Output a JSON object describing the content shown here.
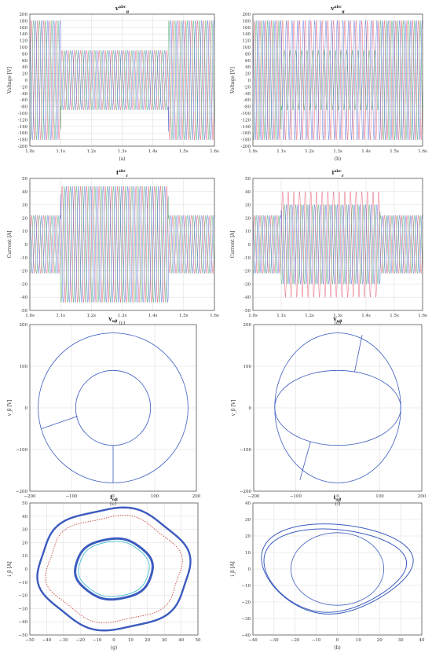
{
  "colors": {
    "grid": "#d9d9d9",
    "axis": "#444444",
    "phase_a": "#e0405a",
    "phase_b": "#2f9e5a",
    "phase_c": "#3b5bd9",
    "trace": "#3b5bbf",
    "trace_alt": "#2bb7c9",
    "trace_marker": "#c0392b"
  },
  "chart_data": [
    {
      "id": "a",
      "type": "line",
      "title": "v_g^abc",
      "title_main": "v",
      "title_sub": "g",
      "title_sup": "abc",
      "caption": "(a)",
      "xlabel": "",
      "ylabel": "Voltage [V]",
      "xlim": [
        1.0,
        1.6
      ],
      "ylim": [
        -200,
        200
      ],
      "xticks": [
        1.0,
        1.1,
        1.2,
        1.3,
        1.4,
        1.5,
        1.6
      ],
      "xtick_labels": [
        "1.0s",
        "1.1s",
        "1.2s",
        "1.3s",
        "1.4s",
        "1.5s",
        "1.6s"
      ],
      "yticks": [
        -200,
        -180,
        -160,
        -140,
        -120,
        -100,
        -80,
        -60,
        -40,
        -20,
        0,
        20,
        40,
        60,
        80,
        100,
        120,
        140,
        160,
        180,
        200
      ],
      "ytick_labels": [
        "-200",
        "-180",
        "-160",
        "-140",
        "-120",
        "-100",
        "-80",
        "-60",
        "-40",
        "-20",
        "0",
        "20",
        "40",
        "60",
        "80",
        "100",
        "120",
        "140",
        "160",
        "180",
        "200"
      ],
      "series": [
        {
          "phase": "a",
          "amplitude_segments": [
            {
              "t0": 1.0,
              "t1": 1.1,
              "amp": 180
            },
            {
              "t0": 1.1,
              "t1": 1.45,
              "amp": 90
            },
            {
              "t0": 1.45,
              "t1": 1.6,
              "amp": 180
            }
          ],
          "frequency": 50
        }
      ]
    },
    {
      "id": "b",
      "type": "line",
      "title": "v_g^abc",
      "title_main": "v",
      "title_sub": "g",
      "title_sup": "abc",
      "caption": "(b)",
      "xlabel": "",
      "ylabel": "Voltage [V]",
      "xlim": [
        1.0,
        1.6
      ],
      "ylim": [
        -200,
        200
      ],
      "xticks": [
        1.0,
        1.1,
        1.2,
        1.3,
        1.4,
        1.5,
        1.6
      ],
      "xtick_labels": [
        "1.0s",
        "1.1s",
        "1.2s",
        "1.3s",
        "1.4s",
        "1.5s",
        "1.6s"
      ],
      "yticks": [
        -200,
        -180,
        -160,
        -140,
        -120,
        -100,
        -80,
        -60,
        -40,
        -20,
        0,
        20,
        40,
        60,
        80,
        100,
        120,
        140,
        160,
        180,
        200
      ],
      "ytick_labels": [
        "-200",
        "-180",
        "-160",
        "-140",
        "-120",
        "-100",
        "-80",
        "-60",
        "-40",
        "-20",
        "0",
        "20",
        "40",
        "60",
        "80",
        "100",
        "120",
        "140",
        "160",
        "180",
        "200"
      ],
      "series": [
        {
          "phase": "unbalanced",
          "amplitude_segments": [
            {
              "t0": 1.0,
              "t1": 1.1,
              "amp": 180
            },
            {
              "t0": 1.1,
              "t1": 1.45,
              "amp": 180,
              "amp_b": 90
            },
            {
              "t0": 1.45,
              "t1": 1.6,
              "amp": 180
            }
          ],
          "frequency": 50
        }
      ]
    },
    {
      "id": "c",
      "type": "line",
      "title": "i_r^abc",
      "title_main": "i",
      "title_sub": "r",
      "title_sup": "abc",
      "caption": "(c)",
      "xlabel": "",
      "ylabel": "Current [A]",
      "xlim": [
        1.0,
        1.6
      ],
      "ylim": [
        -50,
        50
      ],
      "xticks": [
        1.0,
        1.1,
        1.2,
        1.3,
        1.4,
        1.5,
        1.6
      ],
      "xtick_labels": [
        "1.0s",
        "1.1s",
        "1.2s",
        "1.3s",
        "1.4s",
        "1.5s",
        "1.6s"
      ],
      "yticks": [
        -50,
        -40,
        -30,
        -20,
        -10,
        0,
        10,
        20,
        30,
        40,
        50
      ],
      "ytick_labels": [
        "-50",
        "-40",
        "-30",
        "-20",
        "-10",
        "0",
        "10",
        "20",
        "30",
        "40",
        "50"
      ],
      "series": [
        {
          "phase": "a",
          "amplitude_segments": [
            {
              "t0": 1.0,
              "t1": 1.1,
              "amp": 22
            },
            {
              "t0": 1.1,
              "t1": 1.45,
              "amp": 44
            },
            {
              "t0": 1.45,
              "t1": 1.6,
              "amp": 22
            }
          ],
          "frequency": 50
        }
      ]
    },
    {
      "id": "d",
      "type": "line",
      "title": "i_r^abc",
      "title_main": "i",
      "title_sub": "r",
      "title_sup": "abc",
      "caption": "(d)",
      "xlabel": "",
      "ylabel": "Current [A]",
      "xlim": [
        1.0,
        1.6
      ],
      "ylim": [
        -50,
        50
      ],
      "xticks": [
        1.0,
        1.1,
        1.2,
        1.3,
        1.4,
        1.5,
        1.6
      ],
      "xtick_labels": [
        "1.0s",
        "1.1s",
        "1.2s",
        "1.3s",
        "1.4s",
        "1.5s",
        "1.6s"
      ],
      "yticks": [
        -50,
        -40,
        -30,
        -20,
        -10,
        0,
        10,
        20,
        30,
        40,
        50
      ],
      "ytick_labels": [
        "-50",
        "-40",
        "-30",
        "-20",
        "-10",
        "0",
        "10",
        "20",
        "30",
        "40",
        "50"
      ],
      "series": [
        {
          "phase": "unbalanced",
          "amplitude_segments": [
            {
              "t0": 1.0,
              "t1": 1.1,
              "amp": 22
            },
            {
              "t0": 1.1,
              "t1": 1.45,
              "amp": 30,
              "amp_peak": 40
            },
            {
              "t0": 1.45,
              "t1": 1.6,
              "amp": 22
            }
          ],
          "frequency": 50
        }
      ]
    },
    {
      "id": "e",
      "type": "scatter",
      "title": "v_αβ",
      "title_main": "v",
      "title_sub": "αβ",
      "title_sup": "",
      "caption": "(e)",
      "xlabel": "",
      "ylabel": "v_β [V]",
      "xlim": [
        -200,
        200
      ],
      "ylim": [
        -200,
        200
      ],
      "xticks": [
        -200,
        -100,
        0,
        100,
        200
      ],
      "xtick_labels": [
        "−200",
        "−100",
        "0",
        "100",
        "200"
      ],
      "yticks": [
        -200,
        -100,
        0,
        100,
        200
      ],
      "ytick_labels": [
        "−200",
        "−100",
        "0",
        "100",
        "200"
      ],
      "curves": [
        {
          "kind": "ellipse",
          "cx": 0,
          "cy": 0,
          "rx": 180,
          "ry": 180
        },
        {
          "kind": "ellipse",
          "cx": 0,
          "cy": 0,
          "rx": 90,
          "ry": 90
        },
        {
          "kind": "segment",
          "x1": -85,
          "y1": -20,
          "x2": -172,
          "y2": -50
        },
        {
          "kind": "segment",
          "x1": 0,
          "y1": -90,
          "x2": 0,
          "y2": -180
        }
      ]
    },
    {
      "id": "f",
      "type": "scatter",
      "title": "v_αβ",
      "title_main": "v",
      "title_sub": "αβ",
      "title_sup": "",
      "caption": "(f)",
      "xlabel": "",
      "ylabel": "v_β [V]",
      "xlim": [
        -200,
        200
      ],
      "ylim": [
        -200,
        200
      ],
      "xticks": [
        -200,
        -100,
        0,
        100,
        200
      ],
      "xtick_labels": [
        "−200",
        "−100",
        "0",
        "100",
        "200"
      ],
      "yticks": [
        -200,
        -100,
        0,
        100,
        200
      ],
      "ytick_labels": [
        "−200",
        "−100",
        "0",
        "100",
        "200"
      ],
      "curves": [
        {
          "kind": "ellipse",
          "cx": 0,
          "cy": 0,
          "rx": 150,
          "ry": 180
        },
        {
          "kind": "ellipse",
          "cx": 0,
          "cy": 0,
          "rx": 150,
          "ry": 90
        },
        {
          "kind": "segment",
          "x1": -65,
          "y1": -82,
          "x2": -90,
          "y2": -173
        },
        {
          "kind": "segment",
          "x1": 40,
          "y1": 86,
          "x2": 58,
          "y2": 175
        }
      ]
    },
    {
      "id": "g",
      "type": "scatter",
      "title": "i_αβ",
      "title_main": "i",
      "title_sub": "αβ",
      "title_sup": "",
      "caption": "(g)",
      "xlabel": "",
      "ylabel": "i_β [A]",
      "xlim": [
        -50,
        50
      ],
      "ylim": [
        -50,
        50
      ],
      "xticks": [
        -50,
        -40,
        -30,
        -20,
        -10,
        0,
        10,
        20,
        30,
        40,
        50
      ],
      "xtick_labels": [
        "−50",
        "−40",
        "−30",
        "−20",
        "−10",
        "0",
        "10",
        "20",
        "30",
        "40",
        "50"
      ],
      "yticks": [
        -50,
        -40,
        -30,
        -20,
        -10,
        0,
        10,
        20,
        30,
        40,
        50
      ],
      "ytick_labels": [
        "−50",
        "−40",
        "−30",
        "−20",
        "−10",
        "0",
        "10",
        "20",
        "30",
        "40",
        "50"
      ],
      "curves": [
        {
          "kind": "loop",
          "cx": 0,
          "cy": 0,
          "rx": 45,
          "ry": 46,
          "wobble": 0.06,
          "width": 2.4
        },
        {
          "kind": "loop",
          "cx": 0,
          "cy": 0,
          "rx": 40,
          "ry": 40,
          "wobble": 0.08,
          "width": 0.8,
          "dashed": true
        },
        {
          "kind": "loop",
          "cx": 0,
          "cy": 0,
          "rx": 23,
          "ry": 23,
          "wobble": 0.03,
          "width": 3.0
        },
        {
          "kind": "loop",
          "cx": 0,
          "cy": 0,
          "rx": 21,
          "ry": 21,
          "wobble": 0.03,
          "width": 0.8,
          "alt": true
        }
      ]
    },
    {
      "id": "h",
      "type": "scatter",
      "title": "i_αβ",
      "title_main": "i",
      "title_sub": "αβ",
      "title_sup": "",
      "caption": "(h)",
      "xlabel": "",
      "ylabel": "i_β [A]",
      "xlim": [
        -40,
        40
      ],
      "ylim": [
        -40,
        40
      ],
      "xticks": [
        -40,
        -30,
        -20,
        -10,
        0,
        10,
        20,
        30,
        40
      ],
      "xtick_labels": [
        "−40",
        "−30",
        "−20",
        "−10",
        "0",
        "10",
        "20",
        "30",
        "40"
      ],
      "yticks": [
        -40,
        -30,
        -20,
        -10,
        0,
        10,
        20,
        30,
        40
      ],
      "ytick_labels": [
        "−40",
        "−30",
        "−20",
        "−10",
        "0",
        "10",
        "20",
        "30",
        "40"
      ],
      "curves": [
        {
          "kind": "ellipse",
          "cx": 0,
          "cy": 0,
          "rx": 22,
          "ry": 22
        },
        {
          "kind": "skewloop",
          "cx": 0,
          "cy": 0,
          "rx": 35,
          "ry": 27,
          "skew": 0.3
        },
        {
          "kind": "skewloop",
          "cx": -1,
          "cy": -1,
          "rx": 33,
          "ry": 25,
          "skew": 0.28
        }
      ]
    }
  ]
}
